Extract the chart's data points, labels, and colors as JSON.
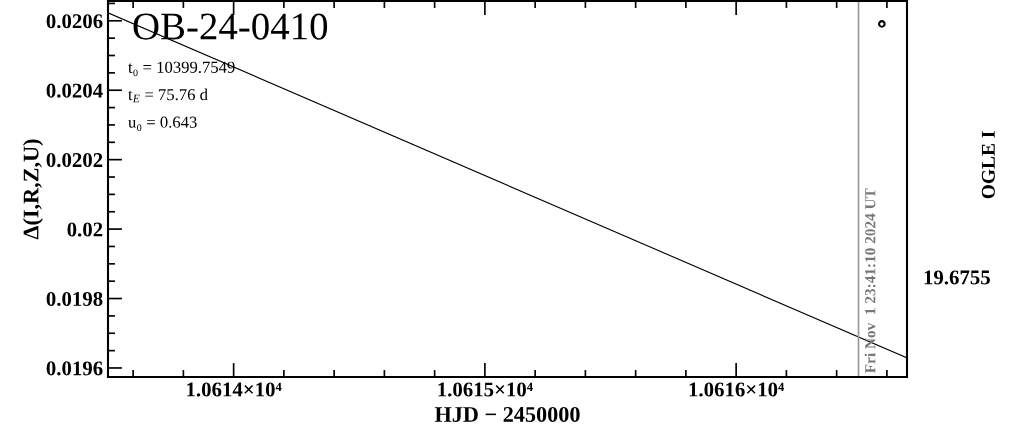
{
  "chart_data": {
    "type": "line",
    "title": "OB-24-0410",
    "xlabel": "HJD − 2450000",
    "ylabel": "Δ(I,R,Z,U)",
    "y2label": "OGLE I",
    "annotations": [
      "t₀ = 10399.7549",
      "t$_{E}$ = 75.76 d",
      "u₀ = 0.643",
      "19.6755",
      "Fri Nov  1 23:41:10 2024 UT"
    ],
    "xlim": [
      10613.5,
      10616.68
    ],
    "xticks": [
      {
        "value": 10614,
        "label": "1.0614×10⁴"
      },
      {
        "value": 10615,
        "label": "1.0615×10⁴"
      },
      {
        "value": 10616,
        "label": "1.0616×10⁴"
      }
    ],
    "ylim": [
      0.019574,
      0.020657
    ],
    "yticks": [
      0.0196,
      0.0198,
      0.02,
      0.0202,
      0.0204,
      0.0206
    ],
    "ref_lines": [
      {
        "axis": "x",
        "value": 10616.487,
        "color": "#999999"
      }
    ],
    "series": [
      {
        "color": "#000000",
        "x": [
          10613.5,
          10616.68
        ],
        "values": [
          0.020623,
          0.019629
        ]
      },
      {
        "type": "scatter",
        "color": "#000000",
        "marker": "circle",
        "x": [
          10616.58
        ],
        "values": [
          0.020591
        ]
      }
    ],
    "grid": false,
    "legend": false
  }
}
